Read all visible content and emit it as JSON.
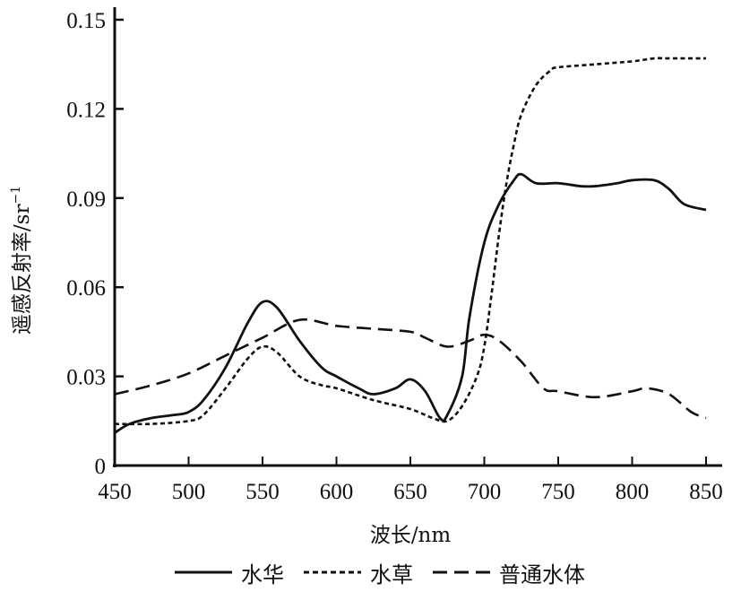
{
  "chart_data": {
    "type": "line",
    "title": "",
    "xlabel": "波长/nm",
    "ylabel": "遥感反射率/sr⁻¹",
    "ylabel_parts": {
      "main": "遥感反射率/sr",
      "sup": "−1"
    },
    "xlim": [
      450,
      850
    ],
    "ylim": [
      0,
      0.15
    ],
    "xticks": [
      "450",
      "500",
      "550",
      "600",
      "650",
      "700",
      "750",
      "800",
      "850"
    ],
    "yticks": [
      "0",
      "0.03",
      "0.06",
      "0.09",
      "0.12",
      "0.15"
    ],
    "grid": false,
    "legend_position": "bottom",
    "series": [
      {
        "name": "水华",
        "style": "solid",
        "x": [
          450,
          460,
          475,
          490,
          500,
          510,
          525,
          540,
          550,
          560,
          575,
          590,
          600,
          615,
          625,
          640,
          650,
          660,
          670,
          675,
          685,
          690,
          700,
          710,
          720,
          725,
          735,
          750,
          765,
          775,
          790,
          800,
          815,
          825,
          835,
          850
        ],
        "values": [
          0.011,
          0.014,
          0.016,
          0.017,
          0.018,
          0.022,
          0.033,
          0.048,
          0.055,
          0.053,
          0.042,
          0.033,
          0.03,
          0.026,
          0.024,
          0.026,
          0.029,
          0.025,
          0.016,
          0.017,
          0.03,
          0.05,
          0.075,
          0.088,
          0.096,
          0.098,
          0.095,
          0.095,
          0.094,
          0.094,
          0.095,
          0.096,
          0.096,
          0.093,
          0.088,
          0.086
        ]
      },
      {
        "name": "水草",
        "style": "short-dash",
        "x": [
          450,
          475,
          500,
          510,
          525,
          540,
          550,
          560,
          575,
          590,
          600,
          625,
          650,
          665,
          675,
          685,
          695,
          700,
          705,
          710,
          715,
          720,
          725,
          735,
          745,
          750,
          775,
          800,
          815,
          825,
          850
        ],
        "values": [
          0.014,
          0.014,
          0.015,
          0.017,
          0.026,
          0.036,
          0.04,
          0.038,
          0.03,
          0.027,
          0.026,
          0.022,
          0.019,
          0.016,
          0.015,
          0.02,
          0.03,
          0.04,
          0.058,
          0.078,
          0.095,
          0.108,
          0.118,
          0.128,
          0.133,
          0.134,
          0.135,
          0.136,
          0.137,
          0.137,
          0.137
        ]
      },
      {
        "name": "普通水体",
        "style": "long-dash",
        "x": [
          450,
          475,
          500,
          525,
          550,
          575,
          600,
          625,
          650,
          660,
          675,
          690,
          700,
          710,
          725,
          740,
          750,
          775,
          800,
          810,
          825,
          840,
          850
        ],
        "values": [
          0.024,
          0.027,
          0.031,
          0.037,
          0.043,
          0.049,
          0.047,
          0.046,
          0.045,
          0.043,
          0.04,
          0.042,
          0.044,
          0.042,
          0.035,
          0.026,
          0.025,
          0.023,
          0.025,
          0.026,
          0.024,
          0.018,
          0.016
        ]
      }
    ]
  },
  "legend": {
    "items": [
      {
        "label": "水华",
        "style": "solid"
      },
      {
        "label": "水草",
        "style": "short-dash"
      },
      {
        "label": "普通水体",
        "style": "long-dash"
      }
    ]
  },
  "colors": {
    "line": "#111111",
    "background": "#ffffff"
  }
}
